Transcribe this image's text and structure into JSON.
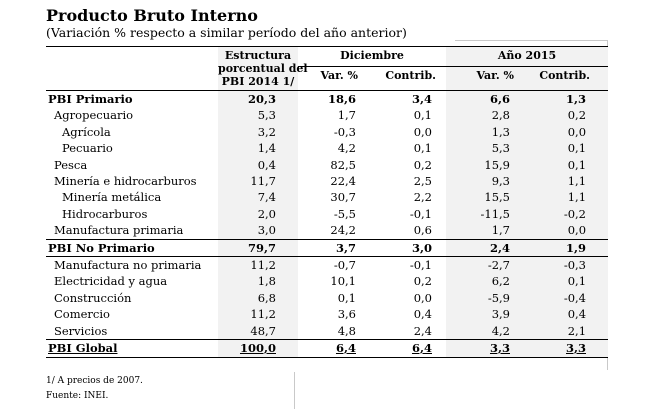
{
  "title": "Producto Bruto Interno",
  "subtitle": "(Variación % respecto a similar período del año anterior)",
  "headers": {
    "estructura_l1": "Estructura",
    "estructura_l2": "porcentual del",
    "estructura_l3": "PBI 2014 1/",
    "diciembre": "Diciembre",
    "anio": "Año 2015",
    "var_dic": "Var. %",
    "contrib_dic": "Contrib.",
    "var_anio": "Var. %",
    "contrib_anio": "Contrib."
  },
  "rows": [
    {
      "label": "PBI Primario",
      "est": "20,3",
      "v1": "18,6",
      "c1": "3,4",
      "v2": "6,6",
      "c2": "1,3"
    },
    {
      "label": "Agropecuario",
      "est": "5,3",
      "v1": "1,7",
      "c1": "0,1",
      "v2": "2,8",
      "c2": "0,2"
    },
    {
      "label": "Agrícola",
      "est": "3,2",
      "v1": "-0,3",
      "c1": "0,0",
      "v2": "1,3",
      "c2": "0,0"
    },
    {
      "label": "Pecuario",
      "est": "1,4",
      "v1": "4,2",
      "c1": "0,1",
      "v2": "5,3",
      "c2": "0,1"
    },
    {
      "label": "Pesca",
      "est": "0,4",
      "v1": "82,5",
      "c1": "0,2",
      "v2": "15,9",
      "c2": "0,1"
    },
    {
      "label": "Minería e hidrocarburos",
      "est": "11,7",
      "v1": "22,4",
      "c1": "2,5",
      "v2": "9,3",
      "c2": "1,1"
    },
    {
      "label": "Minería metálica",
      "est": "7,4",
      "v1": "30,7",
      "c1": "2,2",
      "v2": "15,5",
      "c2": "1,1"
    },
    {
      "label": "Hidrocarburos",
      "est": "2,0",
      "v1": "-5,5",
      "c1": "-0,1",
      "v2": "-11,5",
      "c2": "-0,2"
    },
    {
      "label": "Manufactura primaria",
      "est": "3,0",
      "v1": "24,2",
      "c1": "0,6",
      "v2": "1,7",
      "c2": "0,0"
    },
    {
      "label": "PBI No Primario",
      "est": "79,7",
      "v1": "3,7",
      "c1": "3,0",
      "v2": "2,4",
      "c2": "1,9"
    },
    {
      "label": "Manufactura no primaria",
      "est": "11,2",
      "v1": "-0,7",
      "c1": "-0,1",
      "v2": "-2,7",
      "c2": "-0,3"
    },
    {
      "label": "Electricidad y agua",
      "est": "1,8",
      "v1": "10,1",
      "c1": "0,2",
      "v2": "6,2",
      "c2": "0,1"
    },
    {
      "label": "Construcción",
      "est": "6,8",
      "v1": "0,1",
      "c1": "0,0",
      "v2": "-5,9",
      "c2": "-0,4"
    },
    {
      "label": "Comercio",
      "est": "11,2",
      "v1": "3,6",
      "c1": "0,4",
      "v2": "3,9",
      "c2": "0,4"
    },
    {
      "label": "Servicios",
      "est": "48,7",
      "v1": "4,8",
      "c1": "2,4",
      "v2": "4,2",
      "c2": "2,1"
    },
    {
      "label": "PBI Global",
      "est": "100,0",
      "v1": "6,4",
      "c1": "6,4",
      "v2": "3,3",
      "c2": "3,3"
    }
  ],
  "footnote1": "1/ A precios de 2007.",
  "footnote2": "Fuente: INEI."
}
